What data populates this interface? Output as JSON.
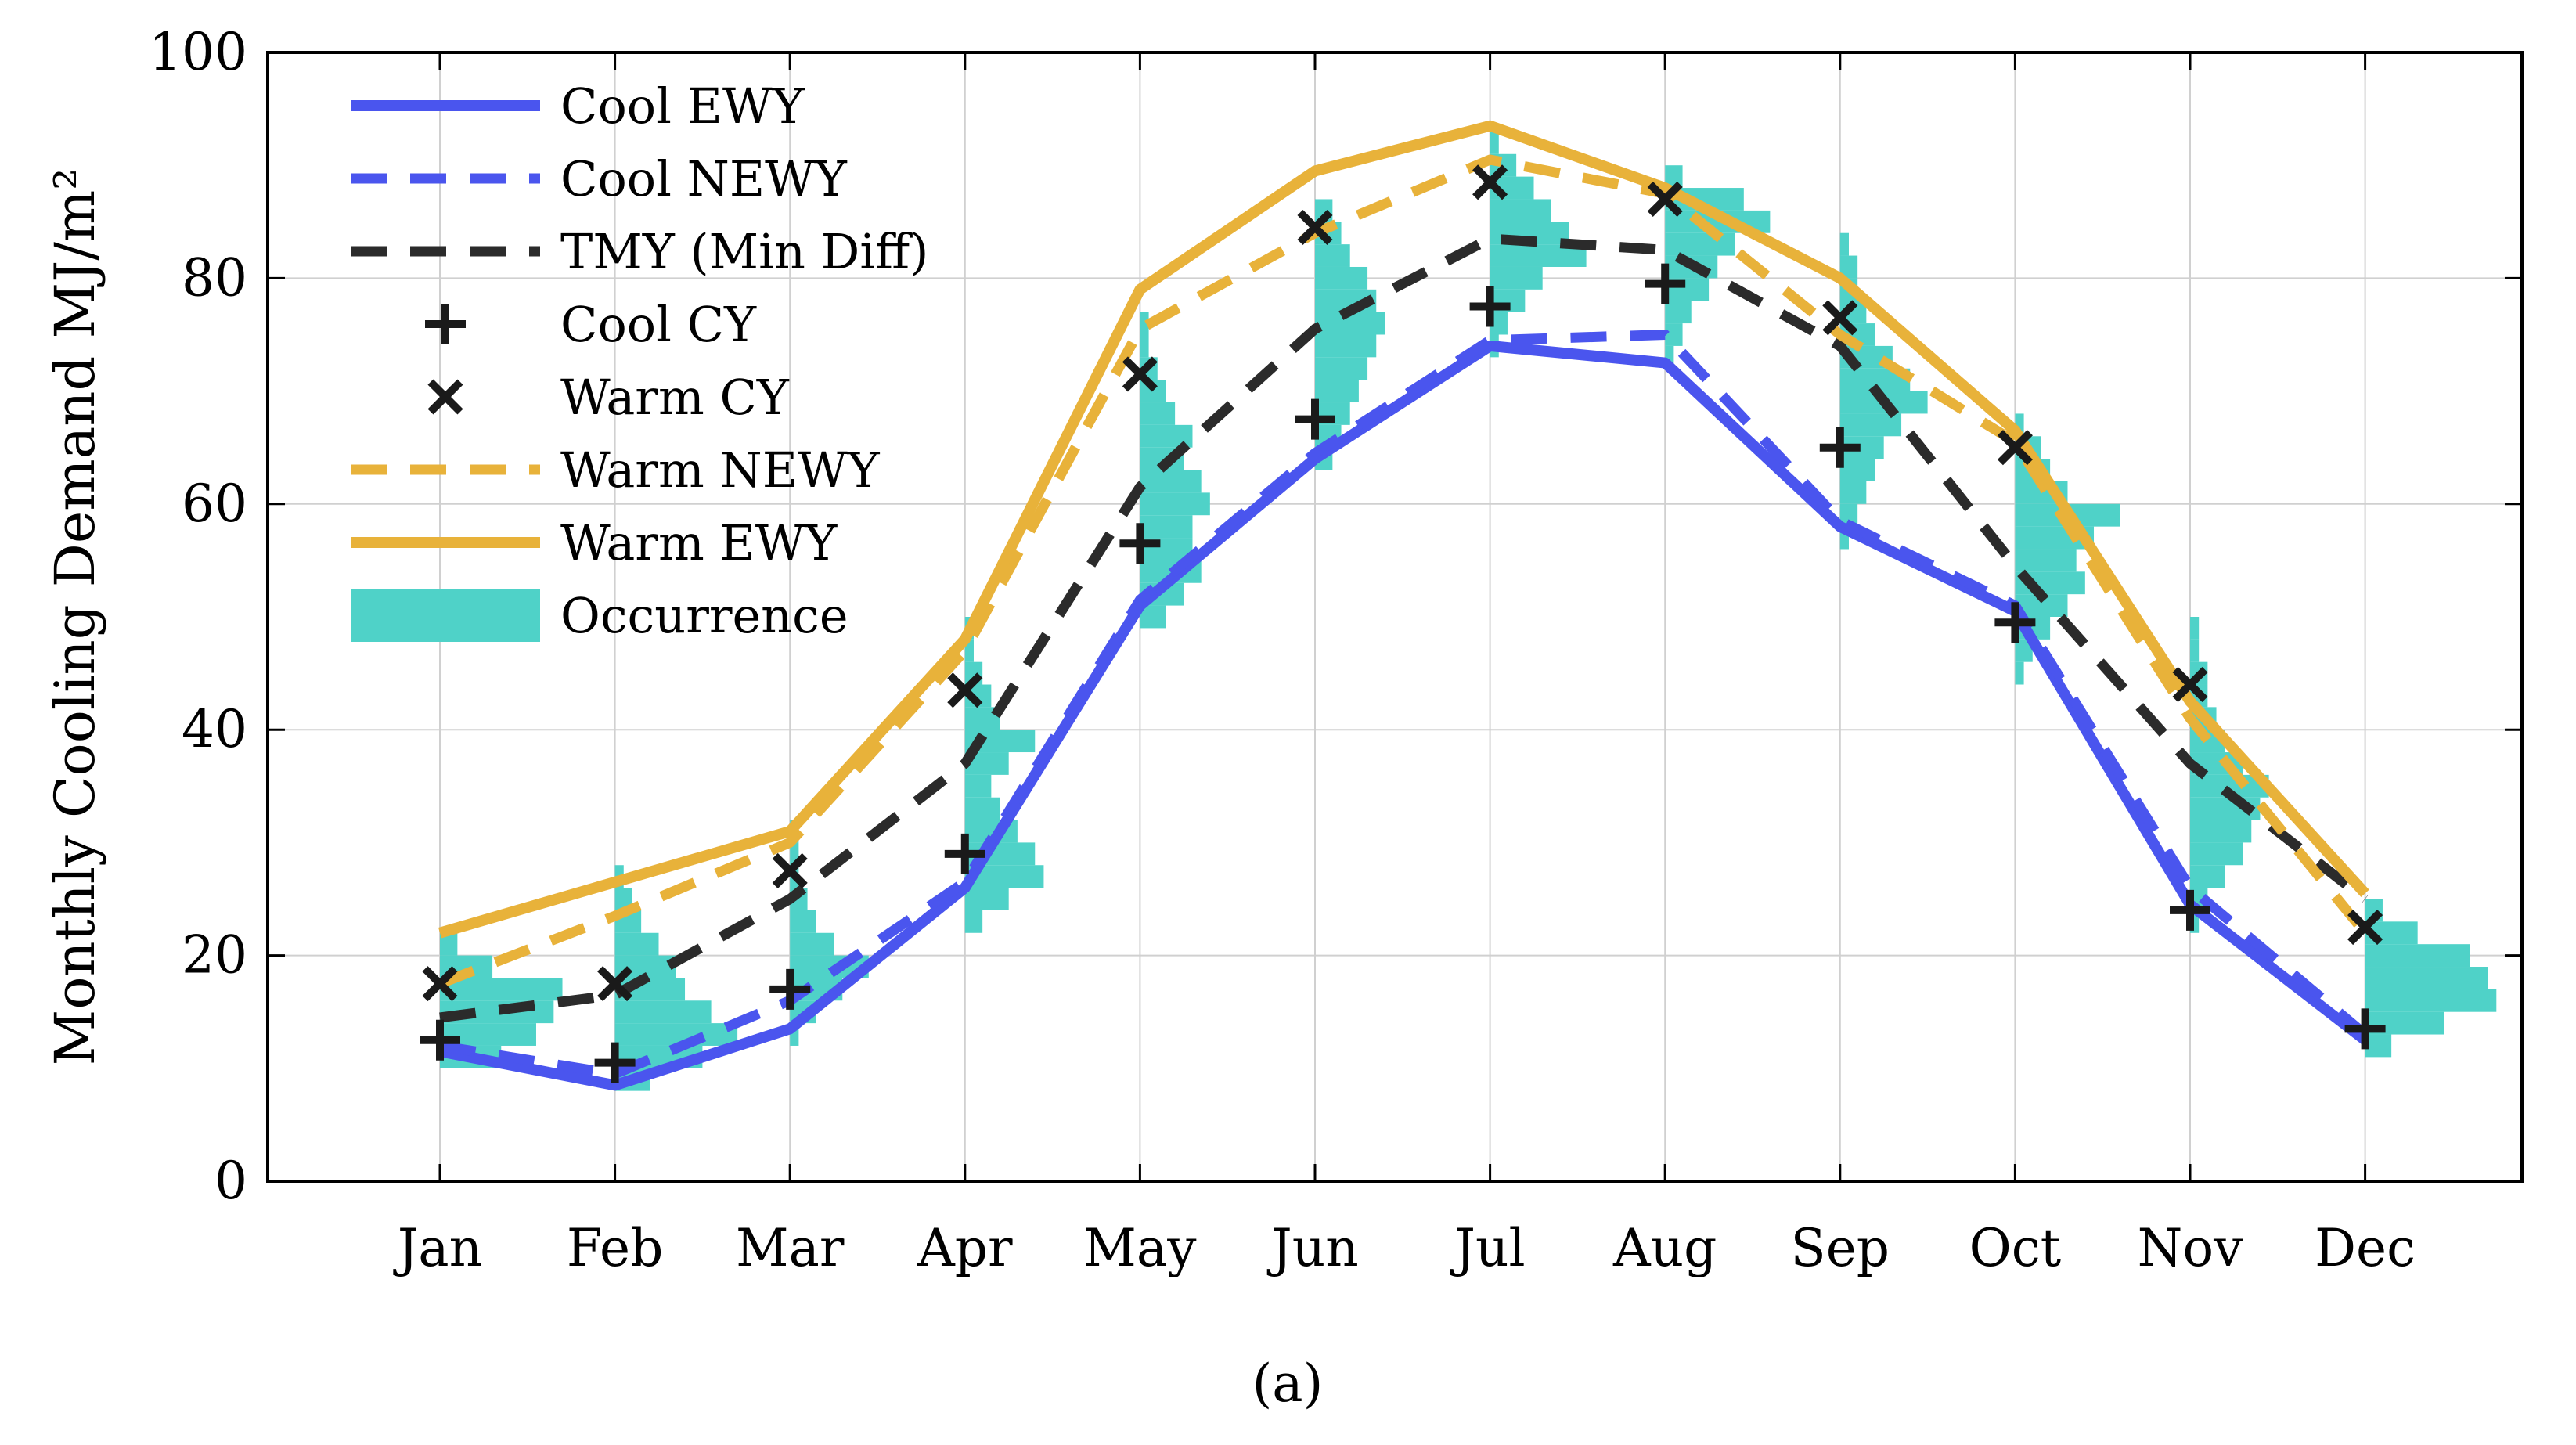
{
  "chart_data": {
    "type": "line",
    "title": "",
    "xlabel": "",
    "ylabel": "Monthly Cooling Demand MJ/m²",
    "ylim": [
      0,
      100
    ],
    "yticks": [
      0,
      20,
      40,
      60,
      80,
      100
    ],
    "grid": true,
    "legend_position": "top-left",
    "caption": "(a)",
    "categories": [
      "Jan",
      "Feb",
      "Mar",
      "Apr",
      "May",
      "Jun",
      "Jul",
      "Aug",
      "Sep",
      "Oct",
      "Nov",
      "Dec"
    ],
    "colors": {
      "blue": "#4a55ee",
      "gold": "#e8b23a",
      "dark": "#2b2b2b",
      "occurrence": "#4fd2c8",
      "grid": "#d0d0d0"
    },
    "series": [
      {
        "name": "Cool EWY",
        "kind": "solid-line",
        "color": "#4a55ee",
        "values": [
          11.5,
          8.5,
          13.5,
          26.0,
          51.0,
          64.0,
          74.0,
          72.5,
          58.0,
          50.5,
          24.5,
          12.5
        ]
      },
      {
        "name": "Cool NEWY",
        "kind": "dashed-line",
        "color": "#4a55ee",
        "values": [
          12.0,
          9.5,
          16.0,
          26.5,
          51.5,
          64.5,
          74.5,
          75.0,
          58.5,
          51.0,
          26.0,
          13.0
        ]
      },
      {
        "name": "TMY (Min Diff)",
        "kind": "dashed-line",
        "color": "#2b2b2b",
        "values": [
          14.5,
          16.5,
          25.0,
          37.0,
          61.5,
          75.5,
          83.5,
          82.5,
          74.0,
          54.5,
          37.0,
          25.0
        ]
      },
      {
        "name": "Cool CY",
        "kind": "plus-marker",
        "color": "#1a1a1a",
        "values": [
          12.5,
          10.5,
          17.0,
          29.0,
          56.5,
          67.5,
          77.5,
          79.5,
          65.0,
          49.5,
          24.0,
          13.5
        ]
      },
      {
        "name": "Warm CY",
        "kind": "x-marker",
        "color": "#1a1a1a",
        "values": [
          17.5,
          17.5,
          27.5,
          43.5,
          71.5,
          84.5,
          88.5,
          87.0,
          76.5,
          65.0,
          44.0,
          22.5
        ]
      },
      {
        "name": "Warm NEWY",
        "kind": "dashed-line",
        "color": "#e8b23a",
        "values": [
          17.5,
          23.5,
          30.0,
          47.0,
          75.5,
          84.0,
          90.5,
          87.5,
          75.0,
          65.5,
          41.0,
          22.0
        ]
      },
      {
        "name": "Warm EWY",
        "kind": "solid-line",
        "color": "#e8b23a",
        "values": [
          22.0,
          26.5,
          31.0,
          48.0,
          79.0,
          89.5,
          93.5,
          88.0,
          80.0,
          66.5,
          42.5,
          25.5
        ]
      },
      {
        "name": "Occurrence",
        "kind": "histogram",
        "color": "#4fd2c8",
        "bin_width": 2,
        "bins": [
          {
            "month": "Jan",
            "centers": [
              11,
              13,
              15,
              17,
              19,
              21
            ],
            "widths": [
              0.35,
              0.55,
              0.65,
              0.7,
              0.3,
              0.1
            ]
          },
          {
            "month": "Feb",
            "centers": [
              9,
              11,
              13,
              15,
              17,
              19,
              21,
              23,
              25,
              27
            ],
            "widths": [
              0.2,
              0.5,
              0.7,
              0.55,
              0.4,
              0.35,
              0.25,
              0.15,
              0.1,
              0.05
            ]
          },
          {
            "month": "Mar",
            "centers": [
              13,
              15,
              17,
              19,
              21,
              23,
              25,
              27,
              29,
              31
            ],
            "widths": [
              0.05,
              0.15,
              0.3,
              0.45,
              0.25,
              0.15,
              0.1,
              0.05,
              0.05,
              0.05
            ]
          },
          {
            "month": "Apr",
            "centers": [
              23,
              25,
              27,
              29,
              31,
              33,
              35,
              37,
              39,
              41,
              43,
              45,
              47,
              49
            ],
            "widths": [
              0.1,
              0.25,
              0.45,
              0.4,
              0.3,
              0.2,
              0.15,
              0.25,
              0.4,
              0.2,
              0.15,
              0.1,
              0.05,
              0.05
            ]
          },
          {
            "month": "May",
            "centers": [
              50,
              52,
              54,
              56,
              58,
              60,
              62,
              64,
              66,
              68,
              70,
              72,
              74,
              76
            ],
            "widths": [
              0.15,
              0.25,
              0.35,
              0.3,
              0.3,
              0.4,
              0.35,
              0.25,
              0.3,
              0.2,
              0.15,
              0.1,
              0.05,
              0.05
            ]
          },
          {
            "month": "Jun",
            "centers": [
              64,
              66,
              68,
              70,
              72,
              74,
              76,
              78,
              80,
              82,
              84,
              86
            ],
            "widths": [
              0.1,
              0.15,
              0.2,
              0.25,
              0.3,
              0.35,
              0.4,
              0.35,
              0.3,
              0.2,
              0.15,
              0.1
            ]
          },
          {
            "month": "Jul",
            "centers": [
              74,
              76,
              78,
              80,
              82,
              84,
              86,
              88,
              90,
              92
            ],
            "widths": [
              0.05,
              0.1,
              0.2,
              0.3,
              0.55,
              0.45,
              0.35,
              0.25,
              0.15,
              0.05
            ]
          },
          {
            "month": "Aug",
            "centers": [
              73,
              75,
              77,
              79,
              81,
              83,
              85,
              87,
              89
            ],
            "widths": [
              0.05,
              0.1,
              0.15,
              0.25,
              0.3,
              0.4,
              0.6,
              0.45,
              0.1
            ]
          },
          {
            "month": "Sep",
            "centers": [
              57,
              59,
              61,
              63,
              65,
              67,
              69,
              71,
              73,
              75,
              77,
              79,
              81,
              83
            ],
            "widths": [
              0.05,
              0.1,
              0.15,
              0.2,
              0.25,
              0.35,
              0.5,
              0.4,
              0.3,
              0.2,
              0.15,
              0.1,
              0.1,
              0.05
            ]
          },
          {
            "month": "Oct",
            "centers": [
              45,
              47,
              49,
              51,
              53,
              55,
              57,
              59,
              61,
              63,
              65,
              67
            ],
            "widths": [
              0.05,
              0.1,
              0.2,
              0.3,
              0.4,
              0.35,
              0.45,
              0.6,
              0.3,
              0.2,
              0.15,
              0.05
            ]
          },
          {
            "month": "Nov",
            "centers": [
              23,
              25,
              27,
              29,
              31,
              33,
              35,
              37,
              39,
              41,
              43,
              45,
              47,
              49
            ],
            "widths": [
              0.05,
              0.1,
              0.2,
              0.3,
              0.35,
              0.4,
              0.45,
              0.3,
              0.2,
              0.15,
              0.1,
              0.1,
              0.05,
              0.05
            ]
          },
          {
            "month": "Dec",
            "centers": [
              12,
              14,
              16,
              18,
              20,
              22,
              24
            ],
            "widths": [
              0.15,
              0.45,
              0.75,
              0.7,
              0.6,
              0.3,
              0.1
            ]
          }
        ]
      }
    ]
  }
}
